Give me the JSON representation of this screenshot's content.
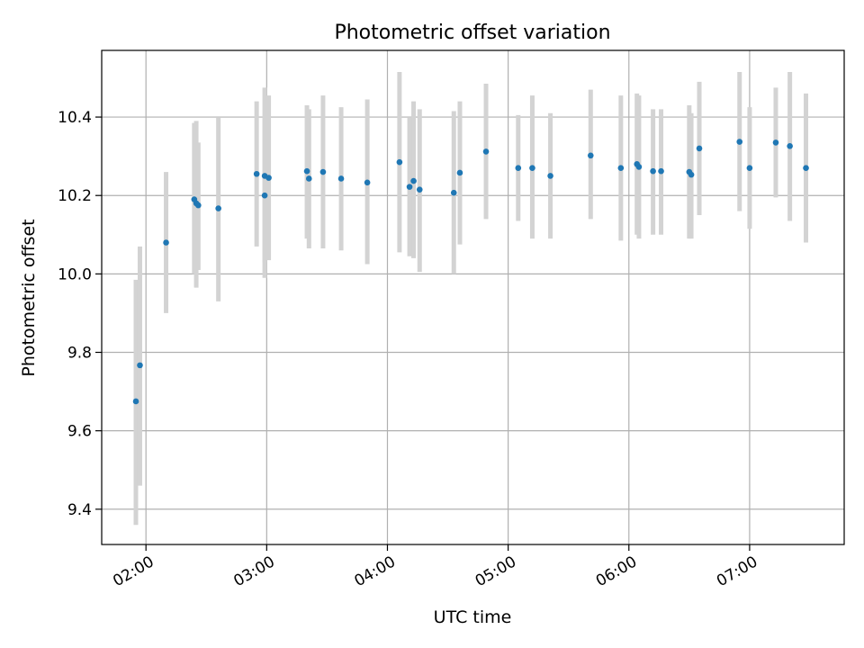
{
  "chart_data": {
    "type": "scatter",
    "title": "Photometric offset variation",
    "xlabel": "UTC time",
    "ylabel": "Photometric offset",
    "x_unit": "UTC time (HH:MM)",
    "xlim": [
      "01:38",
      "07:47"
    ],
    "ylim": [
      9.31,
      10.57
    ],
    "x_ticks": [
      "02:00",
      "03:00",
      "04:00",
      "05:00",
      "06:00",
      "07:00"
    ],
    "y_ticks": [
      "9.4",
      "9.6",
      "9.8",
      "10.0",
      "10.2",
      "10.4"
    ],
    "grid": true,
    "point_color": "#1f77b4",
    "errorbar_color": "#d3d3d3",
    "series": [
      {
        "points": [
          {
            "x": "01:55",
            "y": 9.675,
            "lo": 9.36,
            "hi": 9.985
          },
          {
            "x": "01:57",
            "y": 9.767,
            "lo": 9.46,
            "hi": 10.07
          },
          {
            "x": "02:10",
            "y": 10.08,
            "lo": 9.9,
            "hi": 10.26
          },
          {
            "x": "02:24",
            "y": 10.19,
            "lo": 10.0,
            "hi": 10.385
          },
          {
            "x": "02:25",
            "y": 10.18,
            "lo": 9.965,
            "hi": 10.39
          },
          {
            "x": "02:26",
            "y": 10.175,
            "lo": 10.01,
            "hi": 10.335
          },
          {
            "x": "02:36",
            "y": 10.167,
            "lo": 9.93,
            "hi": 10.4
          },
          {
            "x": "02:55",
            "y": 10.255,
            "lo": 10.07,
            "hi": 10.44
          },
          {
            "x": "02:59",
            "y": 10.2,
            "lo": 9.99,
            "hi": 10.4
          },
          {
            "x": "02:59",
            "y": 10.25,
            "lo": 10.03,
            "hi": 10.475
          },
          {
            "x": "03:01",
            "y": 10.245,
            "lo": 10.035,
            "hi": 10.455
          },
          {
            "x": "03:20",
            "y": 10.262,
            "lo": 10.09,
            "hi": 10.43
          },
          {
            "x": "03:21",
            "y": 10.243,
            "lo": 10.065,
            "hi": 10.42
          },
          {
            "x": "03:28",
            "y": 10.26,
            "lo": 10.065,
            "hi": 10.455
          },
          {
            "x": "03:37",
            "y": 10.243,
            "lo": 10.06,
            "hi": 10.425
          },
          {
            "x": "03:50",
            "y": 10.233,
            "lo": 10.025,
            "hi": 10.445
          },
          {
            "x": "04:06",
            "y": 10.285,
            "lo": 10.055,
            "hi": 10.515
          },
          {
            "x": "04:11",
            "y": 10.222,
            "lo": 10.045,
            "hi": 10.4
          },
          {
            "x": "04:13",
            "y": 10.237,
            "lo": 10.04,
            "hi": 10.44
          },
          {
            "x": "04:16",
            "y": 10.215,
            "lo": 10.005,
            "hi": 10.42
          },
          {
            "x": "04:33",
            "y": 10.207,
            "lo": 10.0,
            "hi": 10.415
          },
          {
            "x": "04:36",
            "y": 10.258,
            "lo": 10.075,
            "hi": 10.44
          },
          {
            "x": "04:49",
            "y": 10.312,
            "lo": 10.14,
            "hi": 10.485
          },
          {
            "x": "05:05",
            "y": 10.27,
            "lo": 10.135,
            "hi": 10.405
          },
          {
            "x": "05:12",
            "y": 10.27,
            "lo": 10.09,
            "hi": 10.455
          },
          {
            "x": "05:21",
            "y": 10.25,
            "lo": 10.09,
            "hi": 10.41
          },
          {
            "x": "05:41",
            "y": 10.302,
            "lo": 10.14,
            "hi": 10.47
          },
          {
            "x": "05:56",
            "y": 10.27,
            "lo": 10.085,
            "hi": 10.455
          },
          {
            "x": "06:04",
            "y": 10.28,
            "lo": 10.1,
            "hi": 10.46
          },
          {
            "x": "06:05",
            "y": 10.273,
            "lo": 10.09,
            "hi": 10.455
          },
          {
            "x": "06:12",
            "y": 10.262,
            "lo": 10.1,
            "hi": 10.42
          },
          {
            "x": "06:16",
            "y": 10.262,
            "lo": 10.1,
            "hi": 10.42
          },
          {
            "x": "06:30",
            "y": 10.26,
            "lo": 10.09,
            "hi": 10.43
          },
          {
            "x": "06:31",
            "y": 10.253,
            "lo": 10.09,
            "hi": 10.41
          },
          {
            "x": "06:35",
            "y": 10.32,
            "lo": 10.15,
            "hi": 10.49
          },
          {
            "x": "06:55",
            "y": 10.337,
            "lo": 10.16,
            "hi": 10.515
          },
          {
            "x": "07:00",
            "y": 10.27,
            "lo": 10.115,
            "hi": 10.425
          },
          {
            "x": "07:13",
            "y": 10.335,
            "lo": 10.195,
            "hi": 10.475
          },
          {
            "x": "07:20",
            "y": 10.326,
            "lo": 10.135,
            "hi": 10.515
          },
          {
            "x": "07:28",
            "y": 10.27,
            "lo": 10.08,
            "hi": 10.46
          }
        ]
      }
    ]
  }
}
